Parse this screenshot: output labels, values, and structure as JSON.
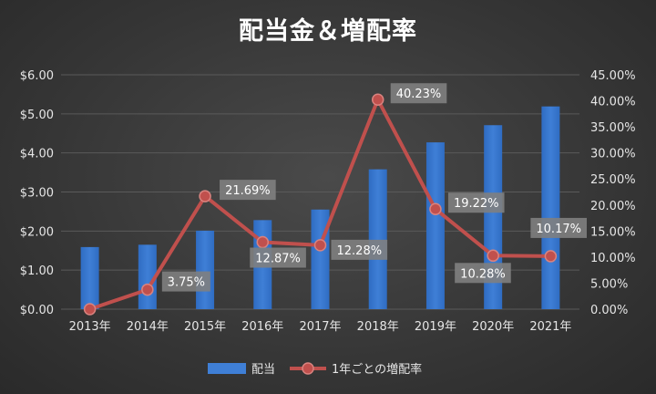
{
  "chart_data": {
    "type": "bar",
    "title": "配当金＆増配率",
    "categories": [
      "2013年",
      "2014年",
      "2015年",
      "2016年",
      "2017年",
      "2018年",
      "2019年",
      "2020年",
      "2021年"
    ],
    "series": [
      {
        "name": "配当",
        "type": "bar",
        "axis": "left",
        "color": "#3f7fd6",
        "values": [
          1.59,
          1.65,
          2.01,
          2.28,
          2.55,
          3.58,
          4.27,
          4.71,
          5.19
        ]
      },
      {
        "name": "1年ごとの増配率",
        "type": "line",
        "axis": "right",
        "color": "#c0504d",
        "values": [
          0,
          3.75,
          21.69,
          12.87,
          12.28,
          40.23,
          19.22,
          10.28,
          10.17
        ],
        "labels": [
          "",
          "3.75%",
          "21.69%",
          "12.87%",
          "12.28%",
          "40.23%",
          "19.22%",
          "10.28%",
          "10.17%"
        ]
      }
    ],
    "y_left": {
      "range": [
        0,
        6
      ],
      "ticks": [
        "$0.00",
        "$1.00",
        "$2.00",
        "$3.00",
        "$4.00",
        "$5.00",
        "$6.00"
      ]
    },
    "y_right": {
      "range": [
        0,
        45
      ],
      "ticks": [
        "0.00%",
        "5.00%",
        "10.00%",
        "15.00%",
        "20.00%",
        "25.00%",
        "30.00%",
        "35.00%",
        "40.00%",
        "45.00%"
      ]
    },
    "grid": true,
    "legend": "bottom"
  }
}
